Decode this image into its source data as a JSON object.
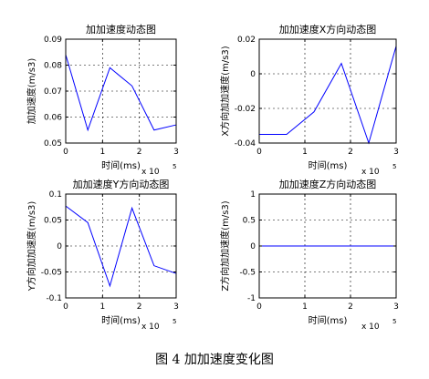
{
  "figure": {
    "caption": "图 4  加加速度变化图"
  },
  "colors": {
    "line": "#0000ff",
    "axis": "#000000",
    "grid": "#000000"
  },
  "chart_data": [
    {
      "type": "line",
      "title": "加加速度动态图",
      "xlabel": "时间(ms)",
      "ylabel": "加加速度(m/s3)",
      "x_exponent_label": "x 10",
      "x_exponent": "5",
      "x_tick_scale": 100000,
      "xlim": [
        0,
        300000
      ],
      "ylim": [
        0.05,
        0.09
      ],
      "xticks": [
        0,
        100000,
        200000,
        300000
      ],
      "xtick_labels": [
        "0",
        "1",
        "2",
        "3"
      ],
      "yticks": [
        0.05,
        0.06,
        0.07,
        0.08,
        0.09
      ],
      "ytick_labels": [
        "0.05",
        "0.06",
        "0.07",
        "0.08",
        "0.09"
      ],
      "grid": true,
      "series": [
        {
          "x": [
            0,
            60000,
            120000,
            180000,
            240000,
            300000
          ],
          "y": [
            0.084,
            0.055,
            0.079,
            0.072,
            0.055,
            0.057
          ]
        }
      ]
    },
    {
      "type": "line",
      "title": "加加速度X方向动态图",
      "xlabel": "时间(ms)",
      "ylabel": "X方向加加速度(m/s3)",
      "x_exponent_label": "x 10",
      "x_exponent": "5",
      "x_tick_scale": 100000,
      "xlim": [
        0,
        300000
      ],
      "ylim": [
        -0.04,
        0.02
      ],
      "xticks": [
        0,
        100000,
        200000,
        300000
      ],
      "xtick_labels": [
        "0",
        "1",
        "2",
        "3"
      ],
      "yticks": [
        -0.04,
        -0.02,
        0,
        0.02
      ],
      "ytick_labels": [
        "-0.04",
        "-0.02",
        "0",
        "0.02"
      ],
      "grid": true,
      "series": [
        {
          "x": [
            0,
            60000,
            120000,
            180000,
            240000,
            300000
          ],
          "y": [
            -0.035,
            -0.035,
            -0.022,
            0.006,
            -0.04,
            0.016
          ]
        }
      ]
    },
    {
      "type": "line",
      "title": "加加速度Y方向动态图",
      "xlabel": "时间(ms)",
      "ylabel": "Y方向加加速度(m/s3)",
      "x_exponent_label": "x 10",
      "x_exponent": "5",
      "x_tick_scale": 100000,
      "xlim": [
        0,
        300000
      ],
      "ylim": [
        -0.1,
        0.1
      ],
      "xticks": [
        0,
        100000,
        200000,
        300000
      ],
      "xtick_labels": [
        "0",
        "1",
        "2",
        "3"
      ],
      "yticks": [
        -0.1,
        -0.05,
        0,
        0.05,
        0.1
      ],
      "ytick_labels": [
        "-0.1",
        "-0.05",
        "0",
        "0.05",
        "0.1"
      ],
      "grid": true,
      "series": [
        {
          "x": [
            0,
            60000,
            120000,
            180000,
            240000,
            300000
          ],
          "y": [
            0.077,
            0.045,
            -0.077,
            0.073,
            -0.038,
            -0.053
          ]
        }
      ]
    },
    {
      "type": "line",
      "title": "加加速度Z方向动态图",
      "xlabel": "时间(ms)",
      "ylabel": "Z方向加加速度(m/s3)",
      "x_exponent_label": "x 10",
      "x_exponent": "5",
      "x_tick_scale": 100000,
      "xlim": [
        0,
        300000
      ],
      "ylim": [
        -1,
        1
      ],
      "xticks": [
        0,
        100000,
        200000,
        300000
      ],
      "xtick_labels": [
        "0",
        "1",
        "2",
        "3"
      ],
      "yticks": [
        -1,
        -0.5,
        0,
        0.5,
        1
      ],
      "ytick_labels": [
        "-1",
        "-0.5",
        "0",
        "0.5",
        "1"
      ],
      "grid": true,
      "series": [
        {
          "x": [
            0,
            60000,
            120000,
            180000,
            240000,
            300000
          ],
          "y": [
            0,
            0,
            0,
            0,
            0,
            0
          ]
        }
      ]
    }
  ]
}
